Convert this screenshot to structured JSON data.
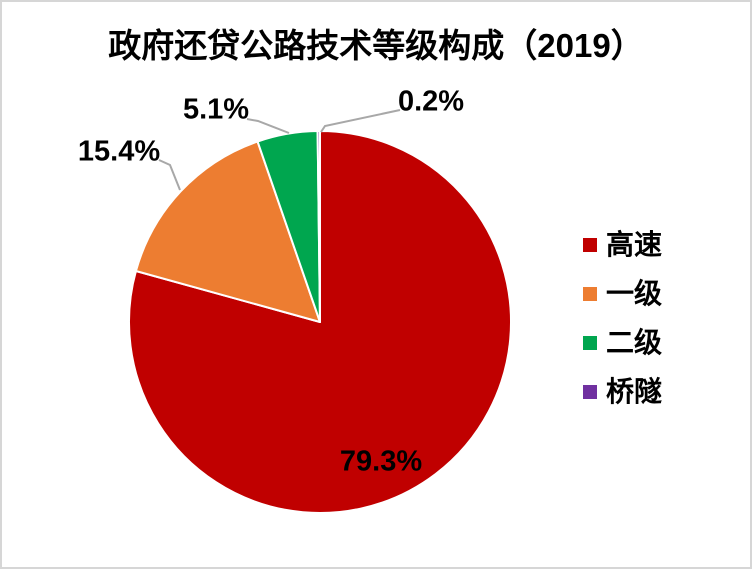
{
  "page": {
    "background": "#ffffff",
    "border_color": "#d6d6d6"
  },
  "chart_data": {
    "type": "pie",
    "title": "政府还贷公路技术等级构成（2019）",
    "categories": [
      "高速",
      "一级",
      "二级",
      "桥隧"
    ],
    "values": [
      79.3,
      15.4,
      5.1,
      0.2
    ],
    "unit": "percent",
    "labels": [
      "79.3%",
      "15.4%",
      "5.1%",
      "0.2%"
    ],
    "colors": [
      "#c00000",
      "#ed7d31",
      "#00a64f",
      "#7030a0"
    ],
    "start_angle_deg": 0,
    "direction": "clockwise",
    "legend_position": "right",
    "slice_border_color": "#ffffff",
    "leader_line_color": "#a8a8a8",
    "label_color": "#000000"
  },
  "legend": {
    "items": [
      {
        "label": "高速",
        "color": "#c00000"
      },
      {
        "label": "一级",
        "color": "#ed7d31"
      },
      {
        "label": "二级",
        "color": "#00a64f"
      },
      {
        "label": "桥隧",
        "color": "#7030a0"
      }
    ]
  }
}
